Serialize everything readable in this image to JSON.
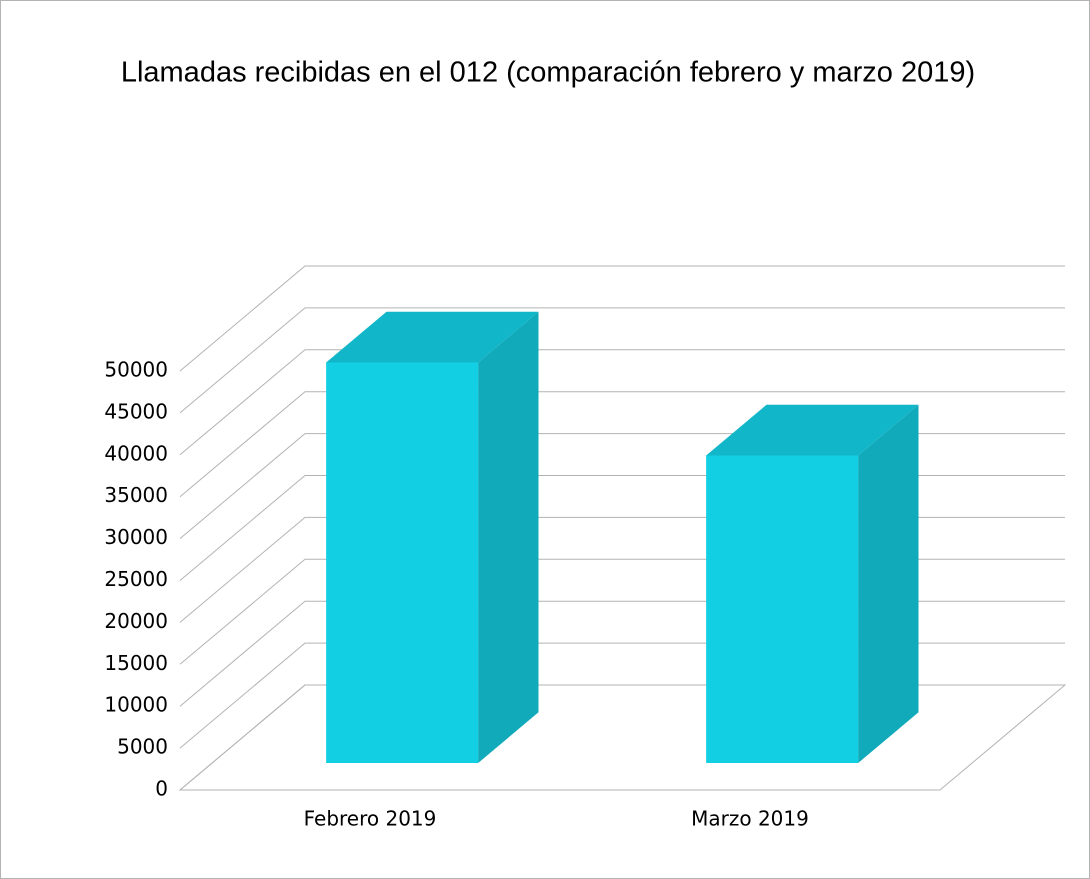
{
  "chart_data": {
    "type": "bar3d",
    "title": "Llamadas recibidas en el 012 (comparación febrero y marzo 2019)",
    "categories": [
      "Febrero 2019",
      "Marzo 2019"
    ],
    "values": [
      47800,
      36700
    ],
    "color": "#13cfe3",
    "ylim": [
      0,
      50000
    ],
    "yticks": [
      0,
      5000,
      10000,
      15000,
      20000,
      25000,
      30000,
      35000,
      40000,
      45000,
      50000
    ],
    "grid": true
  }
}
